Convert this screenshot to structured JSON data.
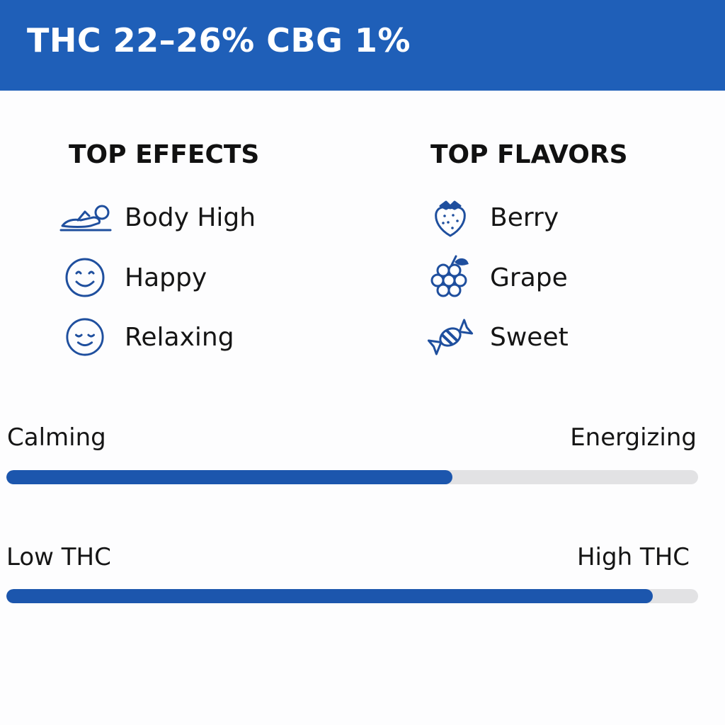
{
  "header": {
    "title": "THC 22–26% CBG 1%",
    "background": "#1f5fb8"
  },
  "effects": {
    "heading": "TOP EFFECTS",
    "items": [
      {
        "label": "Body High",
        "icon": "reclining-person-icon"
      },
      {
        "label": "Happy",
        "icon": "smiley-face-icon"
      },
      {
        "label": "Relaxing",
        "icon": "relaxed-face-icon"
      }
    ]
  },
  "flavors": {
    "heading": "TOP FLAVORS",
    "items": [
      {
        "label": "Berry",
        "icon": "strawberry-icon"
      },
      {
        "label": "Grape",
        "icon": "grape-icon"
      },
      {
        "label": "Sweet",
        "icon": "candy-icon"
      }
    ]
  },
  "sliders": [
    {
      "left_label": "Calming",
      "right_label": "Energizing",
      "level": 0.645
    },
    {
      "left_label": "Low THC",
      "right_label": "High THC",
      "level": 0.935
    }
  ],
  "colors": {
    "accent": "#1c56ad",
    "track": "#e2e2e4",
    "icon": "#1f4f9e"
  }
}
